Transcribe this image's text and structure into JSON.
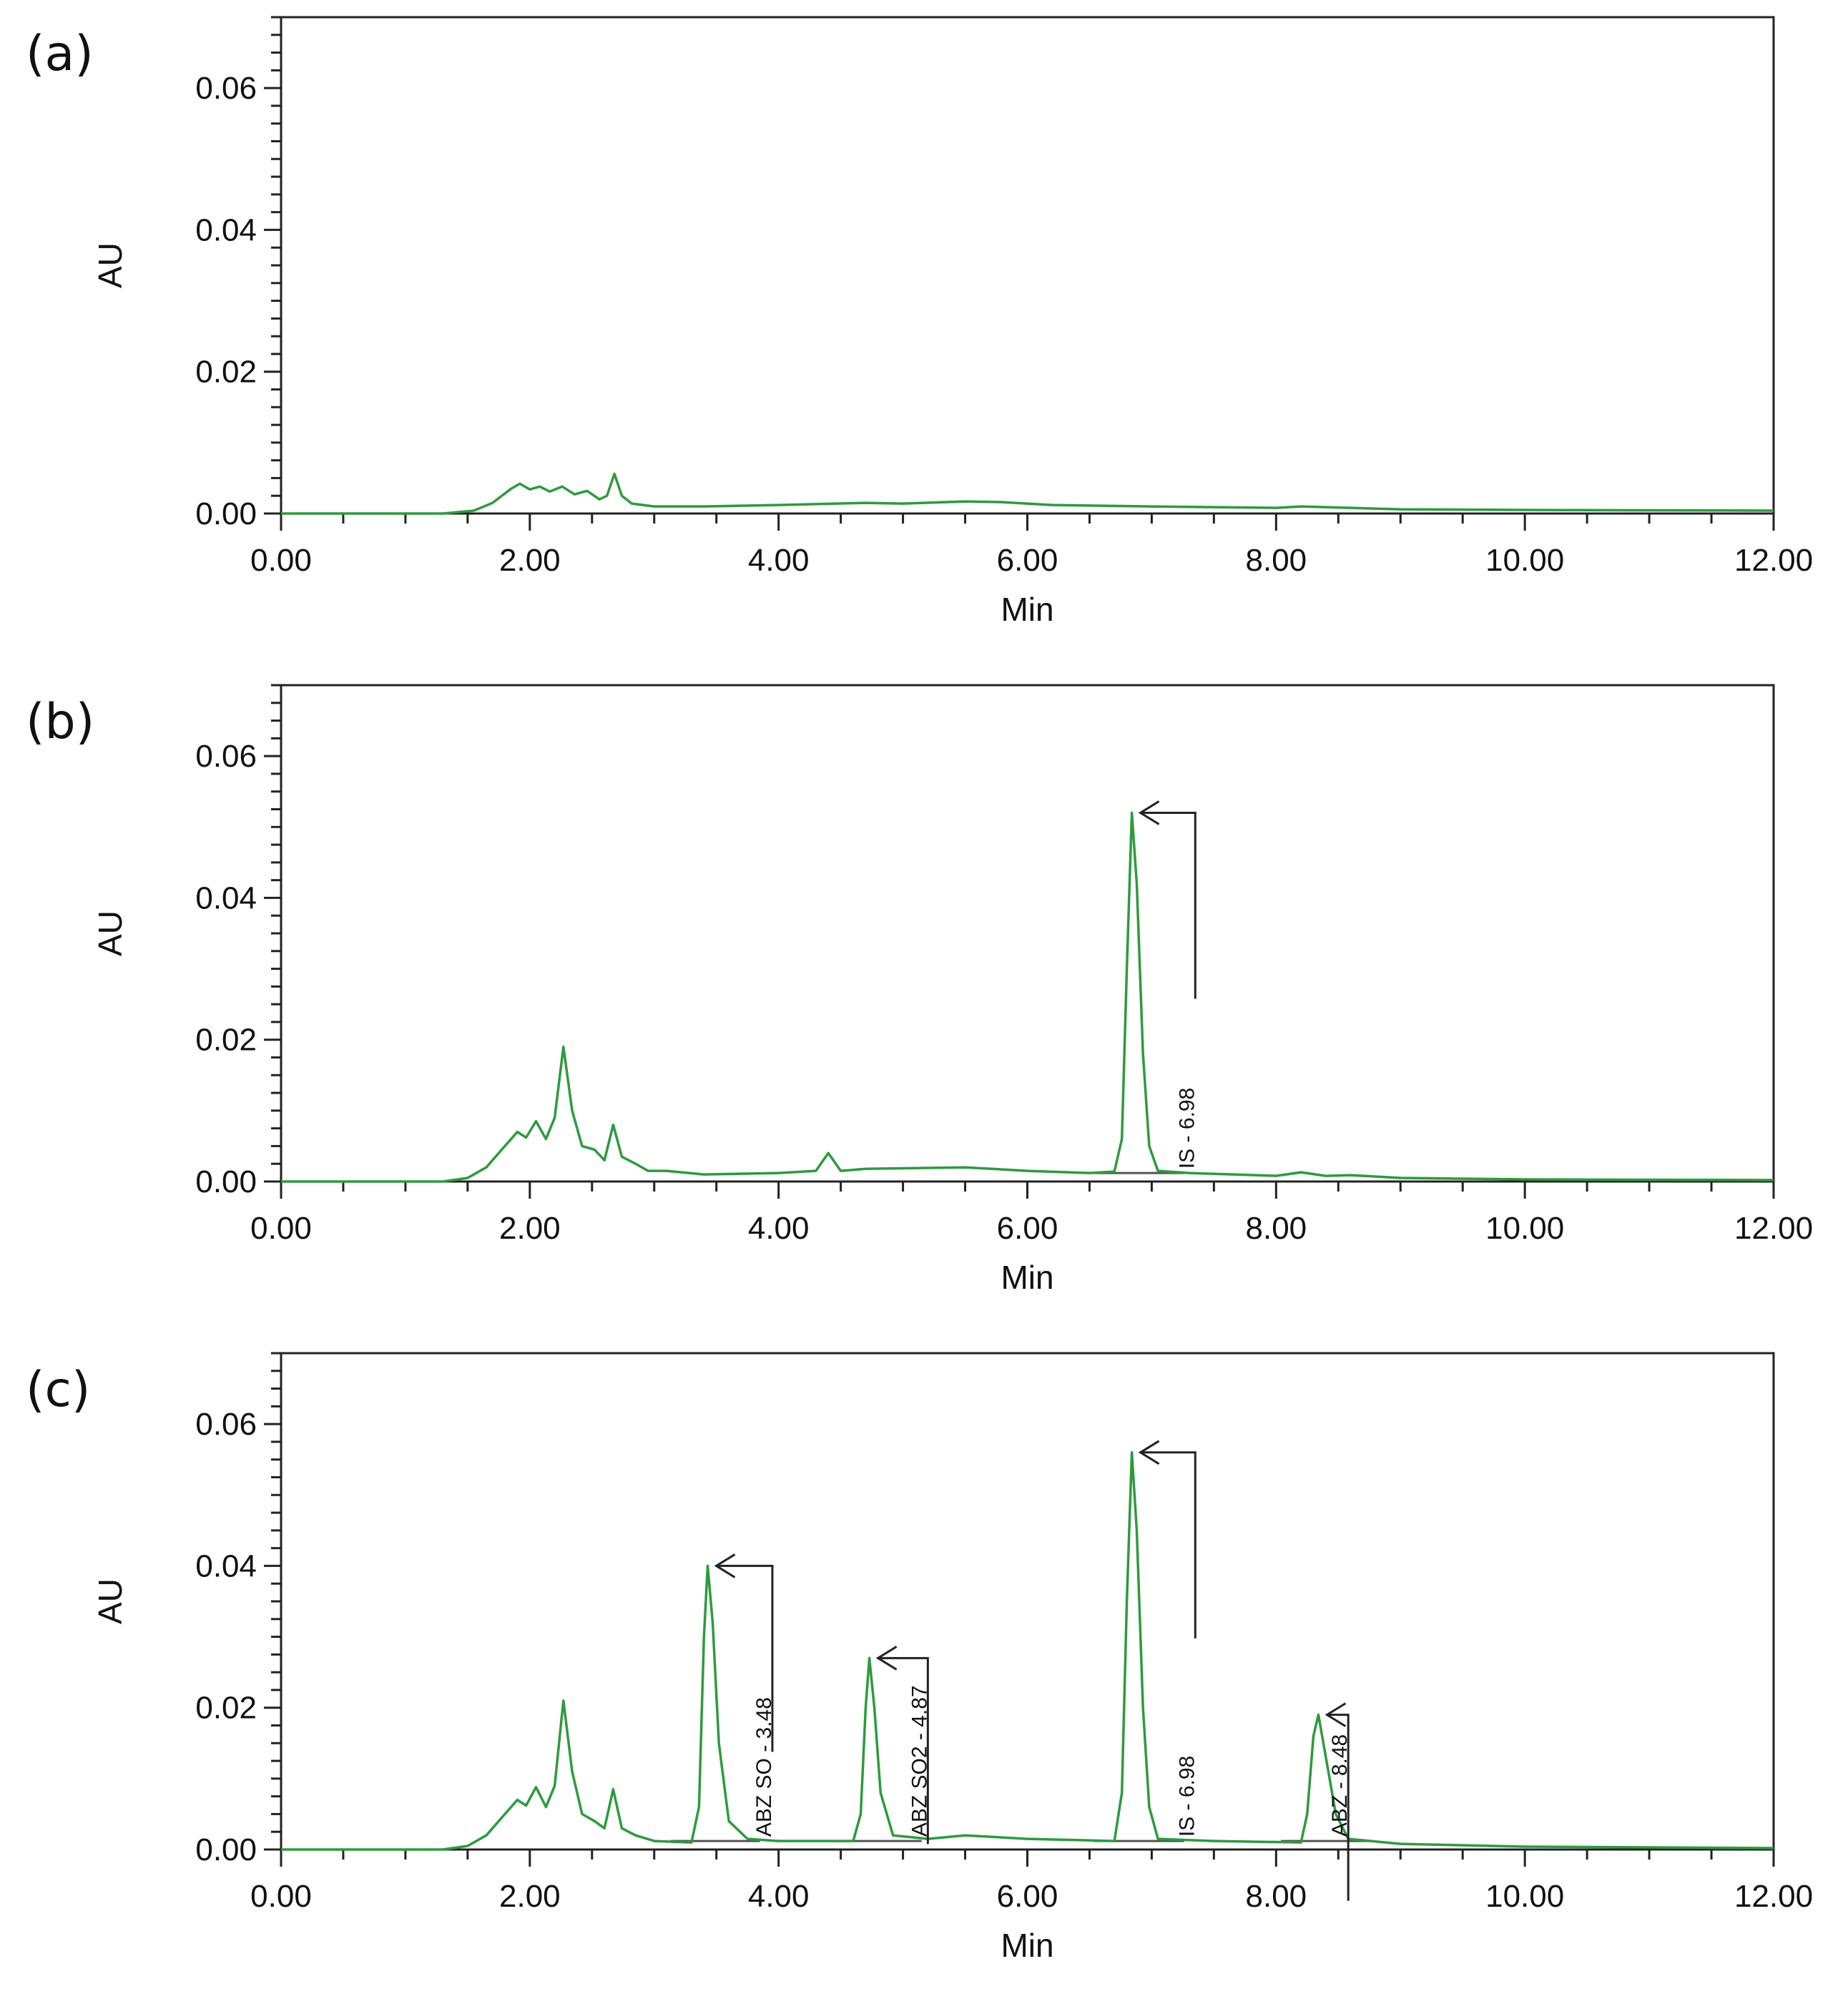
{
  "chart_data": [
    {
      "type": "line",
      "panel_label": "(a)",
      "xlabel": "Min",
      "ylabel": "AU",
      "xlim": [
        0,
        12
      ],
      "ylim": [
        0,
        0.07
      ],
      "x_ticks": [
        "0.00",
        "2.00",
        "4.00",
        "6.00",
        "8.00",
        "10.00",
        "12.00"
      ],
      "y_ticks": [
        "0.00",
        "0.02",
        "0.04",
        "0.06"
      ],
      "series": [
        {
          "name": "chromatogram",
          "color": "#2e9a3f",
          "points": [
            [
              0,
              0
            ],
            [
              1.3,
              0
            ],
            [
              1.55,
              0.0004
            ],
            [
              1.7,
              0.0015
            ],
            [
              1.85,
              0.0035
            ],
            [
              1.92,
              0.0042
            ],
            [
              2.0,
              0.0034
            ],
            [
              2.08,
              0.0038
            ],
            [
              2.16,
              0.0031
            ],
            [
              2.26,
              0.0038
            ],
            [
              2.36,
              0.0027
            ],
            [
              2.46,
              0.0032
            ],
            [
              2.56,
              0.002
            ],
            [
              2.62,
              0.0025
            ],
            [
              2.68,
              0.0056
            ],
            [
              2.74,
              0.0025
            ],
            [
              2.82,
              0.0014
            ],
            [
              3.0,
              0.001
            ],
            [
              3.4,
              0.001
            ],
            [
              4.0,
              0.0012
            ],
            [
              4.7,
              0.0015
            ],
            [
              5.0,
              0.0014
            ],
            [
              5.5,
              0.0017
            ],
            [
              5.8,
              0.0016
            ],
            [
              6.2,
              0.0012
            ],
            [
              7.0,
              0.001
            ],
            [
              8.0,
              0.0008
            ],
            [
              8.2,
              0.001
            ],
            [
              8.6,
              0.0008
            ],
            [
              9.0,
              0.0006
            ],
            [
              10.0,
              0.0005
            ],
            [
              12.0,
              0.0004
            ]
          ]
        }
      ],
      "annotations": []
    },
    {
      "type": "line",
      "panel_label": "(b)",
      "xlabel": "Min",
      "ylabel": "AU",
      "xlim": [
        0,
        12
      ],
      "ylim": [
        0,
        0.07
      ],
      "x_ticks": [
        "0.00",
        "2.00",
        "4.00",
        "6.00",
        "8.00",
        "10.00",
        "12.00"
      ],
      "y_ticks": [
        "0.00",
        "0.02",
        "0.04",
        "0.06"
      ],
      "series": [
        {
          "name": "chromatogram",
          "color": "#2e9a3f",
          "points": [
            [
              0,
              0
            ],
            [
              1.3,
              0
            ],
            [
              1.5,
              0.0005
            ],
            [
              1.65,
              0.002
            ],
            [
              1.8,
              0.005
            ],
            [
              1.9,
              0.007
            ],
            [
              1.97,
              0.0062
            ],
            [
              2.05,
              0.0085
            ],
            [
              2.13,
              0.006
            ],
            [
              2.2,
              0.009
            ],
            [
              2.27,
              0.019
            ],
            [
              2.34,
              0.01
            ],
            [
              2.42,
              0.005
            ],
            [
              2.52,
              0.0045
            ],
            [
              2.6,
              0.003
            ],
            [
              2.67,
              0.008
            ],
            [
              2.74,
              0.0035
            ],
            [
              2.85,
              0.0025
            ],
            [
              2.95,
              0.0015
            ],
            [
              3.1,
              0.0015
            ],
            [
              3.4,
              0.001
            ],
            [
              4.0,
              0.0012
            ],
            [
              4.3,
              0.0015
            ],
            [
              4.4,
              0.004
            ],
            [
              4.5,
              0.0015
            ],
            [
              4.7,
              0.0018
            ],
            [
              5.5,
              0.002
            ],
            [
              6.0,
              0.0015
            ],
            [
              6.5,
              0.0012
            ],
            [
              6.7,
              0.0014
            ],
            [
              6.76,
              0.006
            ],
            [
              6.8,
              0.03
            ],
            [
              6.84,
              0.052
            ],
            [
              6.88,
              0.042
            ],
            [
              6.93,
              0.018
            ],
            [
              6.98,
              0.005
            ],
            [
              7.05,
              0.0015
            ],
            [
              7.3,
              0.0012
            ],
            [
              8.0,
              0.0008
            ],
            [
              8.2,
              0.0013
            ],
            [
              8.4,
              0.0008
            ],
            [
              8.6,
              0.0009
            ],
            [
              9.0,
              0.0005
            ],
            [
              10.0,
              0.0003
            ],
            [
              12.0,
              0.0002
            ]
          ]
        }
      ],
      "annotations": [
        {
          "text": "IS - 6.98",
          "x": 6.84,
          "y": 0.052,
          "bracket_x": 7.35
        }
      ]
    },
    {
      "type": "line",
      "panel_label": "(c)",
      "xlabel": "Min",
      "ylabel": "AU",
      "xlim": [
        0,
        12
      ],
      "ylim": [
        0,
        0.07
      ],
      "x_ticks": [
        "0.00",
        "2.00",
        "4.00",
        "6.00",
        "8.00",
        "10.00",
        "12.00"
      ],
      "y_ticks": [
        "0.00",
        "0.02",
        "0.04",
        "0.06"
      ],
      "series": [
        {
          "name": "chromatogram",
          "color": "#2e9a3f",
          "points": [
            [
              0,
              0
            ],
            [
              1.3,
              0
            ],
            [
              1.5,
              0.0005
            ],
            [
              1.65,
              0.002
            ],
            [
              1.8,
              0.005
            ],
            [
              1.9,
              0.007
            ],
            [
              1.97,
              0.0062
            ],
            [
              2.05,
              0.0088
            ],
            [
              2.13,
              0.006
            ],
            [
              2.2,
              0.009
            ],
            [
              2.27,
              0.021
            ],
            [
              2.34,
              0.011
            ],
            [
              2.42,
              0.005
            ],
            [
              2.52,
              0.004
            ],
            [
              2.6,
              0.003
            ],
            [
              2.67,
              0.0085
            ],
            [
              2.74,
              0.003
            ],
            [
              2.85,
              0.002
            ],
            [
              3.0,
              0.0012
            ],
            [
              3.3,
              0.001
            ],
            [
              3.36,
              0.006
            ],
            [
              3.4,
              0.03
            ],
            [
              3.43,
              0.04
            ],
            [
              3.47,
              0.032
            ],
            [
              3.52,
              0.015
            ],
            [
              3.6,
              0.004
            ],
            [
              3.75,
              0.0015
            ],
            [
              4.0,
              0.0012
            ],
            [
              4.6,
              0.0012
            ],
            [
              4.66,
              0.005
            ],
            [
              4.7,
              0.02
            ],
            [
              4.73,
              0.027
            ],
            [
              4.77,
              0.02
            ],
            [
              4.82,
              0.008
            ],
            [
              4.92,
              0.002
            ],
            [
              5.2,
              0.0015
            ],
            [
              5.5,
              0.002
            ],
            [
              6.0,
              0.0015
            ],
            [
              6.7,
              0.0012
            ],
            [
              6.76,
              0.008
            ],
            [
              6.8,
              0.035
            ],
            [
              6.84,
              0.056
            ],
            [
              6.88,
              0.045
            ],
            [
              6.93,
              0.02
            ],
            [
              6.98,
              0.006
            ],
            [
              7.05,
              0.0015
            ],
            [
              7.5,
              0.0012
            ],
            [
              8.2,
              0.001
            ],
            [
              8.25,
              0.005
            ],
            [
              8.3,
              0.016
            ],
            [
              8.34,
              0.019
            ],
            [
              8.4,
              0.013
            ],
            [
              8.48,
              0.005
            ],
            [
              8.58,
              0.0015
            ],
            [
              9.0,
              0.0008
            ],
            [
              10.0,
              0.0004
            ],
            [
              12.0,
              0.0002
            ]
          ]
        }
      ],
      "annotations": [
        {
          "text": "ABZ SO - 3.48",
          "x": 3.43,
          "y": 0.04,
          "bracket_x": 3.95
        },
        {
          "text": "ABZ SO2 - 4.87",
          "x": 4.73,
          "y": 0.027,
          "bracket_x": 5.2
        },
        {
          "text": "IS - 6.98",
          "x": 6.84,
          "y": 0.056,
          "bracket_x": 7.35
        },
        {
          "text": "ABZ - 8.48",
          "x": 8.34,
          "y": 0.019,
          "bracket_x": 8.58
        }
      ]
    }
  ]
}
